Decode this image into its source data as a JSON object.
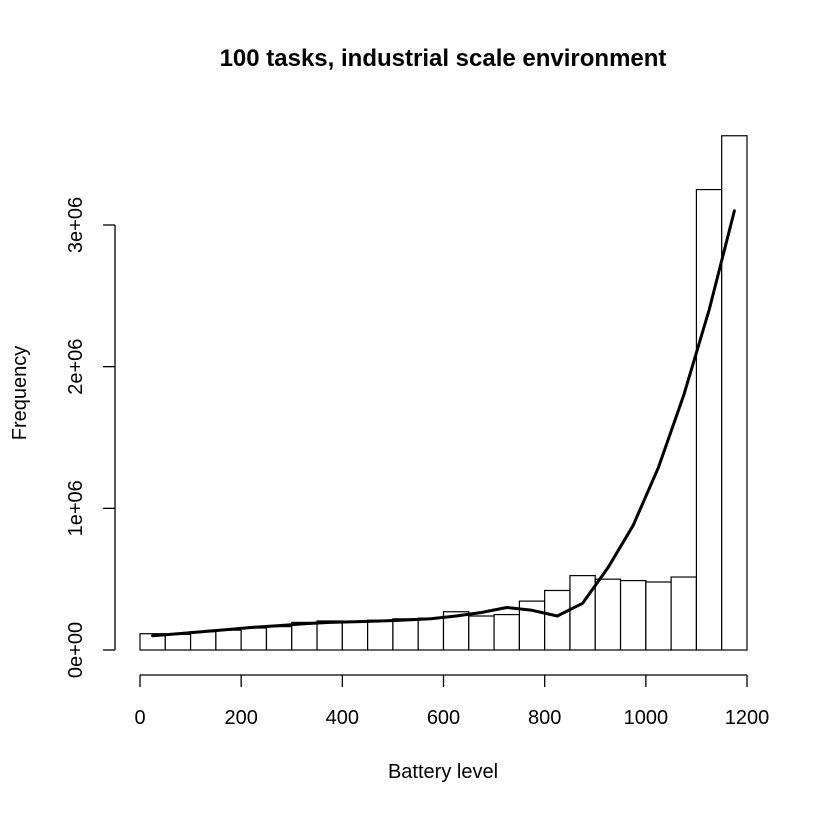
{
  "chart_data": {
    "type": "bar",
    "title": "100 tasks, industrial scale environment",
    "xlabel": "Battery level",
    "ylabel": "Frequency",
    "xlim": [
      0,
      1200
    ],
    "ylim": [
      0,
      3600000
    ],
    "x_ticks": [
      {
        "value": 0,
        "label": "0"
      },
      {
        "value": 200,
        "label": "200"
      },
      {
        "value": 400,
        "label": "400"
      },
      {
        "value": 600,
        "label": "600"
      },
      {
        "value": 800,
        "label": "800"
      },
      {
        "value": 1000,
        "label": "1000"
      },
      {
        "value": 1200,
        "label": "1200"
      }
    ],
    "y_ticks": [
      {
        "value": 0,
        "label": "0e+00"
      },
      {
        "value": 1000000,
        "label": "1e+06"
      },
      {
        "value": 2000000,
        "label": "2e+06"
      },
      {
        "value": 3000000,
        "label": "3e+06"
      }
    ],
    "grid": false,
    "bins": [
      {
        "start": 0,
        "end": 50,
        "value": 115000
      },
      {
        "start": 50,
        "end": 100,
        "value": 110000
      },
      {
        "start": 100,
        "end": 150,
        "value": 130000
      },
      {
        "start": 150,
        "end": 200,
        "value": 140000
      },
      {
        "start": 200,
        "end": 250,
        "value": 155000
      },
      {
        "start": 250,
        "end": 300,
        "value": 165000
      },
      {
        "start": 300,
        "end": 350,
        "value": 195000
      },
      {
        "start": 350,
        "end": 400,
        "value": 205000
      },
      {
        "start": 400,
        "end": 450,
        "value": 200000
      },
      {
        "start": 450,
        "end": 500,
        "value": 210000
      },
      {
        "start": 500,
        "end": 550,
        "value": 220000
      },
      {
        "start": 550,
        "end": 600,
        "value": 225000
      },
      {
        "start": 600,
        "end": 650,
        "value": 270000
      },
      {
        "start": 650,
        "end": 700,
        "value": 240000
      },
      {
        "start": 700,
        "end": 750,
        "value": 250000
      },
      {
        "start": 750,
        "end": 800,
        "value": 345000
      },
      {
        "start": 800,
        "end": 850,
        "value": 420000
      },
      {
        "start": 850,
        "end": 900,
        "value": 525000
      },
      {
        "start": 900,
        "end": 950,
        "value": 500000
      },
      {
        "start": 950,
        "end": 1000,
        "value": 490000
      },
      {
        "start": 1000,
        "end": 1050,
        "value": 480000
      },
      {
        "start": 1050,
        "end": 1100,
        "value": 515000
      },
      {
        "start": 1100,
        "end": 1150,
        "value": 3250000
      },
      {
        "start": 1150,
        "end": 1200,
        "value": 3630000
      }
    ],
    "curve": {
      "x": [
        25,
        75,
        125,
        175,
        225,
        275,
        325,
        375,
        425,
        475,
        525,
        575,
        625,
        675,
        725,
        775,
        825,
        875,
        925,
        975,
        1025,
        1075,
        1125,
        1175
      ],
      "y": [
        100000,
        115000,
        130000,
        145000,
        160000,
        172000,
        185000,
        195000,
        200000,
        205000,
        212000,
        220000,
        240000,
        265000,
        300000,
        280000,
        240000,
        330000,
        580000,
        880000,
        1290000,
        1800000,
        2400000,
        3100000
      ]
    }
  }
}
